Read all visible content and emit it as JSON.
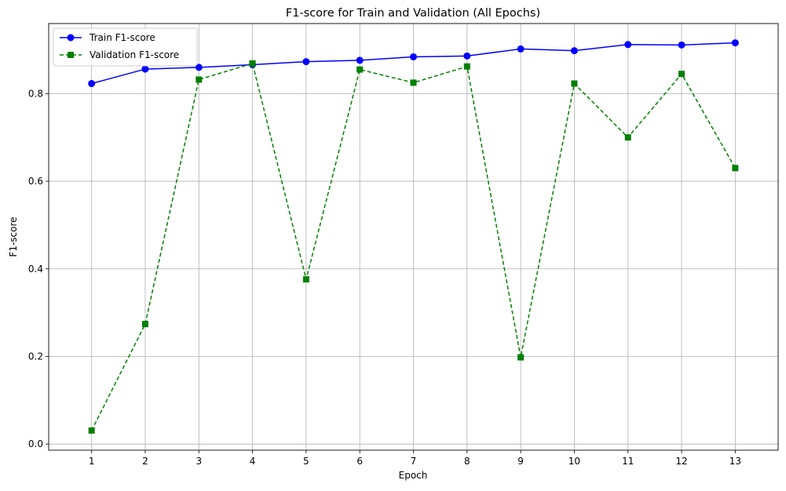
{
  "chart_data": {
    "type": "line",
    "title": "F1-score for Train and Validation (All Epochs)",
    "xlabel": "Epoch",
    "ylabel": "F1-score",
    "x": [
      1,
      2,
      3,
      4,
      5,
      6,
      7,
      8,
      9,
      10,
      11,
      12,
      13
    ],
    "xlim": [
      0.2,
      13.8
    ],
    "ylim": [
      -0.014,
      0.96
    ],
    "yticks": [
      0.0,
      0.2,
      0.4,
      0.6,
      0.8
    ],
    "ytick_labels": [
      "0.0",
      "0.2",
      "0.4",
      "0.6",
      "0.8"
    ],
    "xtick_labels": [
      "1",
      "2",
      "3",
      "4",
      "5",
      "6",
      "7",
      "8",
      "9",
      "10",
      "11",
      "12",
      "13"
    ],
    "grid": true,
    "legend_position": "top-left",
    "series": [
      {
        "name": "Train F1-score",
        "color": "#0000ff",
        "marker": "circle",
        "linestyle": "solid",
        "values": [
          0.823,
          0.856,
          0.86,
          0.866,
          0.873,
          0.876,
          0.884,
          0.886,
          0.902,
          0.898,
          0.912,
          0.911,
          0.916
        ]
      },
      {
        "name": "Validation F1-score",
        "color": "#008000",
        "marker": "square",
        "linestyle": "dashed",
        "values": [
          0.031,
          0.274,
          0.832,
          0.869,
          0.376,
          0.855,
          0.825,
          0.862,
          0.198,
          0.823,
          0.7,
          0.845,
          0.63
        ]
      }
    ]
  }
}
